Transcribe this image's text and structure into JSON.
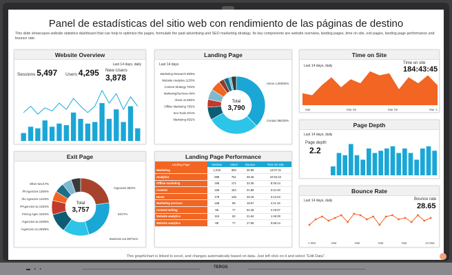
{
  "title": "Panel de estadísticas del sitio web con rendimiento de las páginas de destino",
  "description": "This slide showcases website statistics dashboard that can help to optimize the pages, formulate the paid advertising and SEO marketing strategy. Its key components are website overview, landing pages, time on site, exit pages, landing page performance and bounce rate.",
  "footer": "This graph/chart is linked to excel, and changes automatically based on data. Just left click on it and select \"Edit Data\".",
  "bezel": {
    "logo": "TEROS",
    "dots": "▬ ▪ ▪"
  },
  "colors": {
    "accent": "#f26522",
    "blue": "#1aa7d6",
    "dark": "#1b6f8a"
  },
  "website_overview": {
    "title": "Website Overview",
    "period": "Last 14 days, daily",
    "sessions_label": "Sessions",
    "sessions": "5,497",
    "users_label": "Users",
    "users": "4,295",
    "newusers_label": "New Users",
    "newusers": "3,878"
  },
  "landing_page": {
    "title": "Landing Page",
    "period": "Last 14 days",
    "total_label": "Total",
    "total": "3,790",
    "left_labels": [
      "Marketing Research 86/5%",
      "Website Analytics 113/3%",
      "Content Strategy 70/4%",
      "Marketing/Services 84%",
      "About us 69/2%",
      "Offline Marketing 78/2%",
      "Seo Tools 20/1%",
      "Marketing 85/2%"
    ],
    "right_labels": [
      "Home 1,009/26%",
      "Contact 890/20%"
    ]
  },
  "time_on_site": {
    "title": "Time on Site",
    "period": "Last 14 days, daily",
    "label": "Time on site",
    "value": "184:43:45",
    "x_labels": [
      "Mar",
      "Mar 06",
      "Mar 09",
      "Mar 12"
    ]
  },
  "page_depth": {
    "title": "Page Depth",
    "period": "Last 14 days, daily",
    "label": "Page depth",
    "value": "2.2"
  },
  "exit_page": {
    "title": "Exit Page",
    "total_label": "Total",
    "total": "3,757",
    "left_labels": [
      "Other 621/17%",
      "/PcAgencies 129/4%",
      "/Ex Agencies 142/4%",
      "/PAgencies sa 145/4%",
      "Pricing Agen 152/4%",
      "/Agencies sa 230/6%",
      "/Agencies cut 285/8%"
    ],
    "right_labels": [
      "/Agencies 95/3%",
      "64/17%",
      "Business out 387/11%"
    ]
  },
  "landing_page_performance": {
    "title": "Landing Page Performance",
    "headers": [
      "Landing Page",
      "Session",
      "Users",
      "Bounce",
      "Time On Site"
    ],
    "rows": [
      [
        "Marketing",
        "1,019",
        "993",
        "36.98",
        "13:07:31"
      ],
      [
        "Analytics",
        "899",
        "751",
        "39.46",
        "10:54:22"
      ],
      [
        "Offline marketing",
        "196",
        "171",
        "32.35",
        "8:25:14"
      ],
      [
        "Content",
        "166",
        "154",
        "21.88",
        "3:21:40"
      ],
      [
        "Home",
        "179",
        "148",
        "29.16",
        "3:13:23"
      ],
      [
        "Marketing services",
        "168",
        "96",
        "18.57",
        "4:11:16"
      ],
      [
        "Content writing",
        "96",
        "77",
        "52.45",
        "2:19:07"
      ],
      [
        "Website analytics",
        "116",
        "62",
        "21.64",
        "1:46:29"
      ],
      [
        "Website analytics",
        "88",
        "77",
        "17.06",
        "0:58:14"
      ]
    ]
  },
  "bounce_rate": {
    "title": "Bounce Rate",
    "period": "Last 14 days, daily",
    "label": "Bounce rate",
    "value": "28.65",
    "x_labels": [
      "1 Mar",
      "Mar",
      "Mar",
      "Mar",
      "Mar",
      "13 Mar"
    ]
  },
  "chart_data": [
    {
      "type": "bar",
      "title": "Website Overview",
      "values": [
        5,
        9,
        8,
        13,
        9,
        11,
        10,
        18,
        14,
        11,
        12,
        24,
        14,
        20,
        12,
        22,
        8
      ],
      "line": [
        18,
        22,
        17,
        21,
        19,
        24,
        20,
        27,
        22,
        18,
        22,
        32,
        24,
        30,
        20,
        28,
        22
      ]
    },
    {
      "type": "area",
      "title": "Time on Site",
      "values": [
        6,
        5,
        10,
        14,
        9,
        13,
        11,
        17,
        15,
        16,
        8,
        14,
        11,
        15,
        10
      ],
      "x_labels": [
        "Mar",
        "Mar 06",
        "Mar 09",
        "Mar 12"
      ]
    },
    {
      "type": "bar",
      "title": "Page Depth",
      "values": [
        4,
        10,
        9,
        14,
        9,
        7,
        12,
        10,
        11,
        12,
        13,
        10,
        12,
        10,
        7,
        12,
        13,
        11
      ]
    },
    {
      "type": "line",
      "title": "Bounce Rate",
      "values": [
        8,
        12,
        14,
        11,
        13,
        15,
        10,
        16,
        15,
        12,
        14,
        8,
        14,
        15,
        12,
        13,
        10,
        15,
        11,
        13
      ]
    },
    {
      "type": "pie",
      "title": "Landing Page",
      "values": [
        26,
        20,
        5,
        3,
        4,
        4,
        2,
        2,
        1,
        2
      ]
    },
    {
      "type": "pie",
      "title": "Exit Page",
      "values": [
        17,
        17,
        11,
        8,
        6,
        4,
        4,
        4,
        4
      ]
    }
  ]
}
